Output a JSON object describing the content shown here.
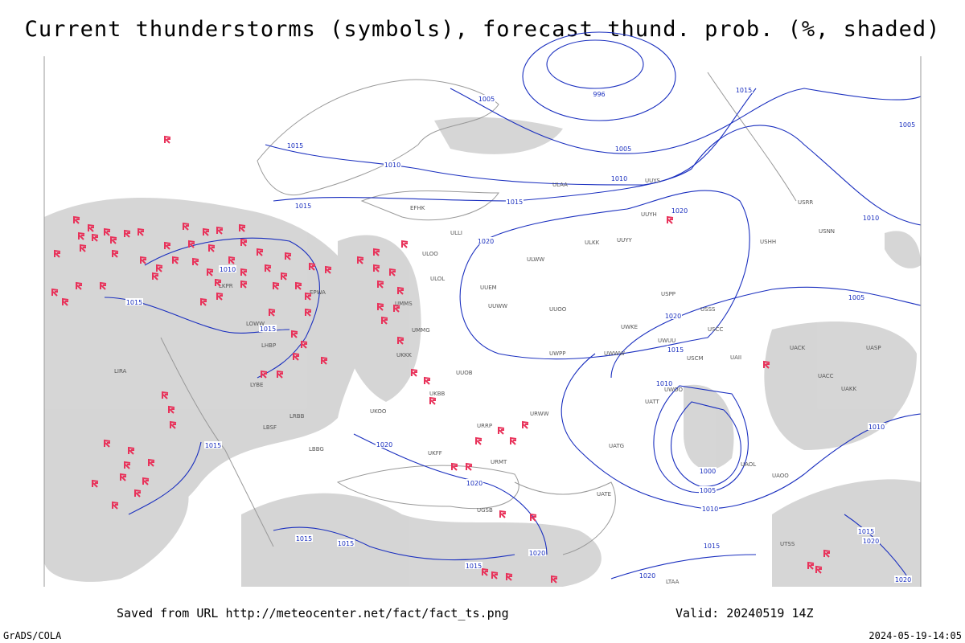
{
  "title": "Current thunderstorms (symbols), forecast thund. prob. (%, shaded)",
  "footer": {
    "saved": "Saved from URL http://meteocenter.net/fact/fact_ts.png",
    "valid": "Valid: 20240519 14Z",
    "software": "GrADS/COLA",
    "timestamp": "2024-05-19-14:05"
  },
  "isobar_labels": [
    "1005",
    "996",
    "1015",
    "1005",
    "1005",
    "1015",
    "1010",
    "1010",
    "1015",
    "1015",
    "1020",
    "1010",
    "1020",
    "1010",
    "1015",
    "1015",
    "1020",
    "1015",
    "1010",
    "1005",
    "1010",
    "1000",
    "1005",
    "1010",
    "1015",
    "1020",
    "1020",
    "1015",
    "1015",
    "1015",
    "1020",
    "1015",
    "1020",
    "1015",
    "1020",
    "1020"
  ],
  "stations": [
    "EFHK",
    "ULLI",
    "ULOO",
    "ULOL",
    "ULWW",
    "UUEM",
    "UUWW",
    "UUOO",
    "UUYY",
    "ULKK",
    "UUYH",
    "USSS",
    "USCC",
    "USCM",
    "UWPP",
    "UWWW",
    "UUOB",
    "UKKK",
    "UMMS",
    "UMMG",
    "UKBB",
    "UKOO",
    "URRP",
    "URWW",
    "UATG",
    "UATT",
    "UACC",
    "UAKK",
    "UAII",
    "UACK",
    "UASP",
    "UGSB",
    "LTAA",
    "UTSS",
    "URMT",
    "UKFF",
    "LBBG",
    "LBSF",
    "LYBE",
    "LHBP",
    "LOWW",
    "LKPR",
    "EPWA",
    "LRBB",
    "ULAA",
    "UUYS",
    "USRR",
    "USNN",
    "USHH",
    "USPP",
    "UWKE",
    "UWUU",
    "UWOO",
    "UATE",
    "UAOL",
    "UAOO",
    "LIRA"
  ]
}
